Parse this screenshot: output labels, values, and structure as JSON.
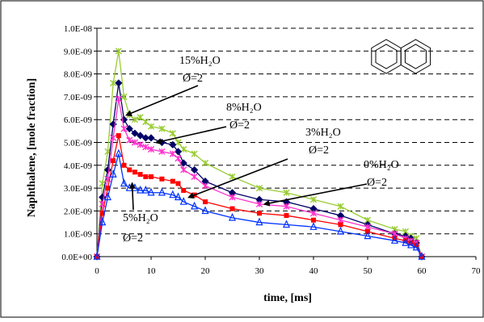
{
  "chart_data": {
    "type": "scatter",
    "xlabel": "time, [ms]",
    "ylabel": "Naphthalene, [mole fraction]",
    "xlim": [
      0,
      70
    ],
    "ylim": [
      0,
      1e-08
    ],
    "x_ticks": [
      "0",
      "10",
      "20",
      "30",
      "40",
      "50",
      "60",
      "70"
    ],
    "y_ticks": [
      "0.0E+00",
      "1.0E-09",
      "2.0E-09",
      "3.0E-09",
      "4.0E-09",
      "5.0E-09",
      "6.0E-09",
      "7.0E-09",
      "8.0E-09",
      "9.0E-09",
      "1.0E-08"
    ],
    "grid": "horizontal dashed",
    "legend": "none",
    "series": [
      {
        "marker": "asterisk",
        "color": "#99cc33",
        "x": [
          0,
          1,
          2,
          3,
          4,
          5,
          6,
          7,
          8,
          9,
          10,
          12,
          14,
          15,
          16,
          18,
          20,
          25,
          30,
          35,
          40,
          45,
          50,
          55,
          57,
          58,
          59,
          60
        ],
        "y": [
          0,
          3.2e-09,
          4.6e-09,
          7.6e-09,
          9e-09,
          7e-09,
          6.2e-09,
          6e-09,
          6.1e-09,
          5.9e-09,
          5.7e-09,
          5.6e-09,
          5.4e-09,
          5e-09,
          4.7e-09,
          4.5e-09,
          4.1e-09,
          3.5e-09,
          3e-09,
          2.8e-09,
          2.5e-09,
          2.2e-09,
          1.6e-09,
          1.2e-09,
          1.1e-09,
          9e-10,
          8e-10,
          0
        ]
      },
      {
        "marker": "diamond",
        "color": "#000066",
        "x": [
          0,
          1,
          2,
          3,
          4,
          5,
          6,
          7,
          8,
          9,
          10,
          12,
          14,
          15,
          16,
          18,
          20,
          25,
          30,
          35,
          40,
          45,
          50,
          55,
          57,
          58,
          59,
          60
        ],
        "y": [
          0,
          2.6e-09,
          3.8e-09,
          5.8e-09,
          7.6e-09,
          6e-09,
          5.6e-09,
          5.4e-09,
          5.3e-09,
          5.2e-09,
          5.2e-09,
          5e-09,
          4.9e-09,
          4.6e-09,
          4.1e-09,
          3.8e-09,
          3.3e-09,
          2.8e-09,
          2.5e-09,
          2.4e-09,
          2.1e-09,
          1.8e-09,
          1.4e-09,
          1e-09,
          9e-10,
          8e-10,
          6e-10,
          0
        ]
      },
      {
        "marker": "asterisk",
        "color": "#ff33cc",
        "x": [
          0,
          1,
          2,
          3,
          4,
          5,
          6,
          7,
          8,
          9,
          10,
          12,
          14,
          15,
          16,
          18,
          20,
          25,
          30,
          35,
          40,
          45,
          50,
          55,
          57,
          58,
          59,
          60
        ],
        "y": [
          0,
          2.3e-09,
          3.4e-09,
          5.2e-09,
          6.9e-09,
          5.6e-09,
          5.1e-09,
          5e-09,
          4.9e-09,
          4.8e-09,
          4.7e-09,
          4.6e-09,
          4.5e-09,
          4.3e-09,
          3.8e-09,
          3.5e-09,
          3.1e-09,
          2.6e-09,
          2.3e-09,
          2.2e-09,
          1.9e-09,
          1.6e-09,
          1.3e-09,
          1e-09,
          8e-10,
          7e-10,
          6e-10,
          0
        ]
      },
      {
        "marker": "square",
        "color": "#ff0000",
        "x": [
          0,
          1,
          2,
          3,
          4,
          5,
          6,
          7,
          8,
          9,
          10,
          12,
          14,
          15,
          16,
          18,
          20,
          25,
          30,
          35,
          40,
          45,
          50,
          55,
          57,
          58,
          59,
          60
        ],
        "y": [
          0,
          1.9e-09,
          3e-09,
          4.2e-09,
          5.3e-09,
          4e-09,
          3.8e-09,
          3.7e-09,
          3.6e-09,
          3.5e-09,
          3.5e-09,
          3.4e-09,
          3.3e-09,
          3.2e-09,
          2.9e-09,
          2.7e-09,
          2.4e-09,
          2.1e-09,
          1.9e-09,
          1.8e-09,
          1.6e-09,
          1.4e-09,
          1.1e-09,
          8e-10,
          7e-10,
          6e-10,
          5e-10,
          0
        ]
      },
      {
        "marker": "triangle",
        "color": "#0033ff",
        "x": [
          0,
          1,
          2,
          3,
          4,
          5,
          6,
          7,
          8,
          9,
          10,
          12,
          14,
          15,
          16,
          18,
          20,
          25,
          30,
          35,
          40,
          45,
          50,
          55,
          57,
          58,
          59,
          60
        ],
        "y": [
          0,
          1.5e-09,
          2.6e-09,
          3.6e-09,
          4.5e-09,
          3.2e-09,
          3e-09,
          3e-09,
          2.9e-09,
          2.9e-09,
          2.8e-09,
          2.8e-09,
          2.7e-09,
          2.6e-09,
          2.4e-09,
          2.2e-09,
          2e-09,
          1.7e-09,
          1.5e-09,
          1.4e-09,
          1.3e-09,
          1.1e-09,
          9e-10,
          7e-10,
          6e-10,
          5e-10,
          4e-10,
          0
        ]
      }
    ],
    "annotations": [
      {
        "line1": "15%H₂O",
        "line2": "Ø=2",
        "arrow_to": [
          5.5,
          6.2e-09
        ]
      },
      {
        "line1": "8%H₂O",
        "line2": "Ø=2",
        "arrow_to": [
          11,
          5e-09
        ]
      },
      {
        "line1": "3%H₂O",
        "line2": "Ø=2",
        "arrow_to": [
          17,
          2.6e-09
        ]
      },
      {
        "line1": "0%H₂O",
        "line2": "Ø=2",
        "arrow_to": [
          31,
          2.3e-09
        ]
      },
      {
        "line1": "5%H₂O",
        "line2": "Ø=2",
        "arrow_to": [
          6.5,
          3.2e-09
        ]
      }
    ],
    "inset_icon": "naphthalene-structure-icon"
  }
}
